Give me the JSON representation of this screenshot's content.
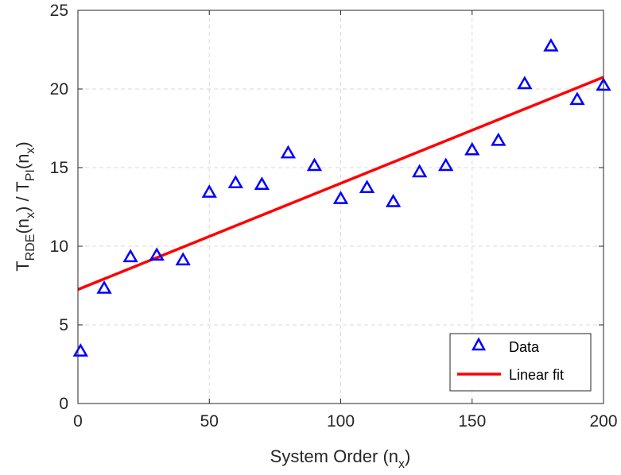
{
  "chart_data": {
    "type": "scatter",
    "xlabel": "System Order (n_x)",
    "ylabel": "T_RDE(n_x) / T_PI(n_x)",
    "xlim": [
      0,
      200
    ],
    "ylim": [
      0,
      25
    ],
    "xticks": [
      0,
      50,
      100,
      150,
      200
    ],
    "yticks": [
      0,
      5,
      10,
      15,
      20,
      25
    ],
    "grid": true,
    "legend_position": "bottom-right",
    "series": [
      {
        "name": "Data",
        "kind": "marker",
        "marker": "triangle",
        "color": "#0000ff",
        "x": [
          1,
          10,
          20,
          30,
          40,
          50,
          60,
          70,
          80,
          90,
          100,
          110,
          120,
          130,
          140,
          150,
          160,
          170,
          180,
          190,
          200
        ],
        "y": [
          3.3,
          7.3,
          9.3,
          9.4,
          9.1,
          13.4,
          14.0,
          13.9,
          15.9,
          15.1,
          13.0,
          13.7,
          12.8,
          14.7,
          15.1,
          16.1,
          16.7,
          20.3,
          22.7,
          19.3,
          20.2
        ]
      },
      {
        "name": "Linear fit",
        "kind": "line",
        "color": "#ff0000",
        "x": [
          0,
          200
        ],
        "y": [
          7.25,
          20.75
        ]
      }
    ]
  }
}
